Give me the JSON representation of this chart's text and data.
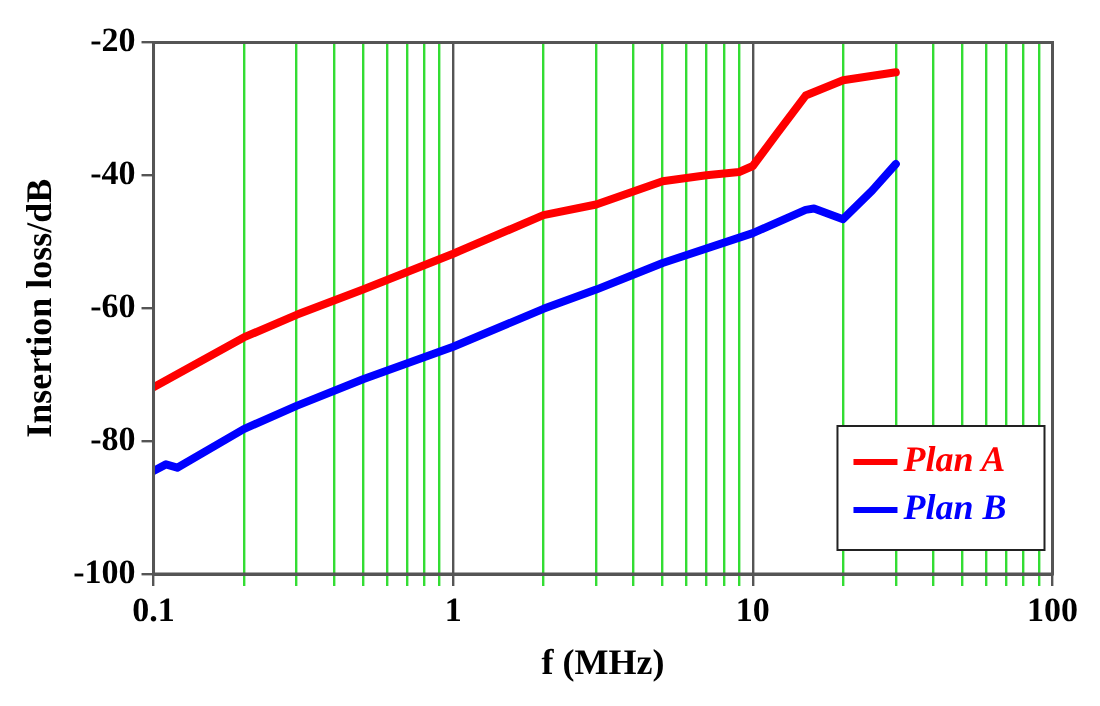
{
  "chart_data": {
    "type": "line",
    "xlabel": "f (MHz)",
    "ylabel": "Insertion loss/dB",
    "log": "x",
    "grid": "x",
    "legend": "bottom right",
    "marker": "none",
    "line_style": "solid",
    "xlim": [
      0.1,
      100
    ],
    "xticks": [
      0.1,
      {
        "value": 0.2,
        "label": null
      },
      {
        "value": 0.3,
        "label": null
      },
      {
        "value": 0.4,
        "label": null
      },
      {
        "value": 0.5,
        "label": null
      },
      {
        "value": 0.6,
        "label": null
      },
      {
        "value": 0.7,
        "label": null
      },
      {
        "value": 0.8,
        "label": null
      },
      {
        "value": 0.9,
        "label": null
      },
      1,
      {
        "value": 2,
        "label": null
      },
      {
        "value": 3,
        "label": null
      },
      {
        "value": 4,
        "label": null
      },
      {
        "value": 5,
        "label": null
      },
      {
        "value": 6,
        "label": null
      },
      {
        "value": 7,
        "label": null
      },
      {
        "value": 8,
        "label": null
      },
      {
        "value": 9,
        "label": null
      },
      10,
      {
        "value": 20,
        "label": null
      },
      {
        "value": 30,
        "label": null
      },
      {
        "value": 40,
        "label": null
      },
      {
        "value": 50,
        "label": null
      },
      {
        "value": 60,
        "label": null
      },
      {
        "value": 70,
        "label": null
      },
      {
        "value": 80,
        "label": null
      },
      {
        "value": 90,
        "label": null
      },
      100
    ],
    "ylim": [
      -100,
      -20
    ],
    "yticks": [
      -100,
      -80,
      -60,
      -40,
      -20
    ],
    "series": [
      {
        "name": "Plan A",
        "color": "#ff0000",
        "x": [
          0.1,
          0.2,
          0.3,
          0.5,
          1,
          2,
          3,
          5,
          7,
          9,
          10,
          12,
          15,
          20,
          30
        ],
        "values": [
          -71.9,
          -64.4,
          -61,
          -57.2,
          -51.8,
          -46,
          -44.4,
          -40.9,
          -40,
          -39.5,
          -38.6,
          -33.8,
          -28,
          -25.7,
          -24.5
        ]
      },
      {
        "name": "Plan B",
        "color": "#0000ff",
        "x": [
          0.1,
          0.11,
          0.12,
          0.2,
          0.3,
          0.5,
          1,
          2,
          3,
          5,
          10,
          15,
          16,
          20,
          25,
          30
        ],
        "values": [
          -84.5,
          -83.5,
          -84,
          -78.2,
          -74.7,
          -70.7,
          -65.8,
          -60.1,
          -57.2,
          -53.2,
          -48.7,
          -45.2,
          -45,
          -46.6,
          -42.3,
          -38.3
        ]
      }
    ]
  }
}
